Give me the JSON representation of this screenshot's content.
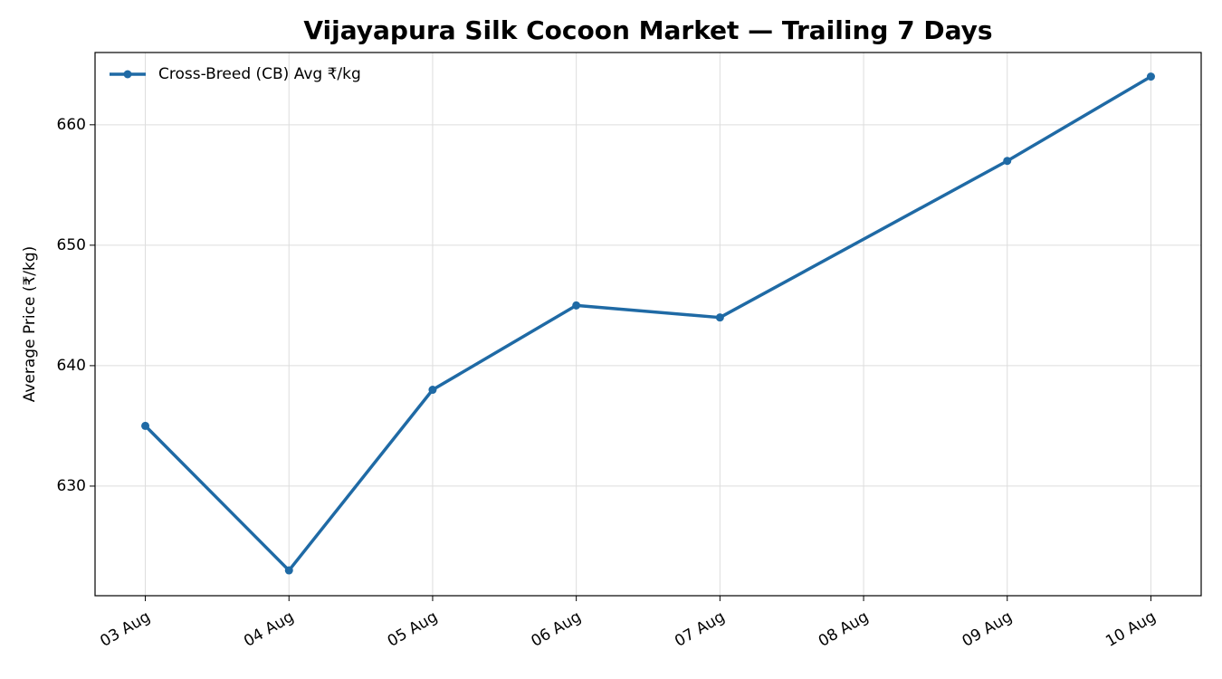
{
  "chart_data": {
    "type": "line",
    "title": "Vijayapura Silk Cocoon Market — Trailing 7 Days",
    "y_label": "Average Price (₹/kg)",
    "x": [
      3,
      4,
      5,
      6,
      7,
      9,
      10
    ],
    "series": [
      {
        "name": "Cross-Breed (CB) Avg ₹/kg",
        "color": "#1f6aa5",
        "values": [
          635,
          623,
          638,
          645,
          644,
          657,
          664
        ]
      }
    ],
    "xlim": [
      2.65,
      10.35
    ],
    "xticks": [
      {
        "value": 3,
        "label": "03 Aug"
      },
      {
        "value": 4,
        "label": "04 Aug"
      },
      {
        "value": 5,
        "label": "05 Aug"
      },
      {
        "value": 6,
        "label": "06 Aug"
      },
      {
        "value": 7,
        "label": "07 Aug"
      },
      {
        "value": 8,
        "label": "08 Aug"
      },
      {
        "value": 9,
        "label": "09 Aug"
      },
      {
        "value": 10,
        "label": "10 Aug"
      }
    ],
    "ylim": [
      620.9,
      666.0
    ],
    "yticks": [
      630,
      640,
      650,
      660
    ],
    "grid": true,
    "legend": "upper-left"
  }
}
